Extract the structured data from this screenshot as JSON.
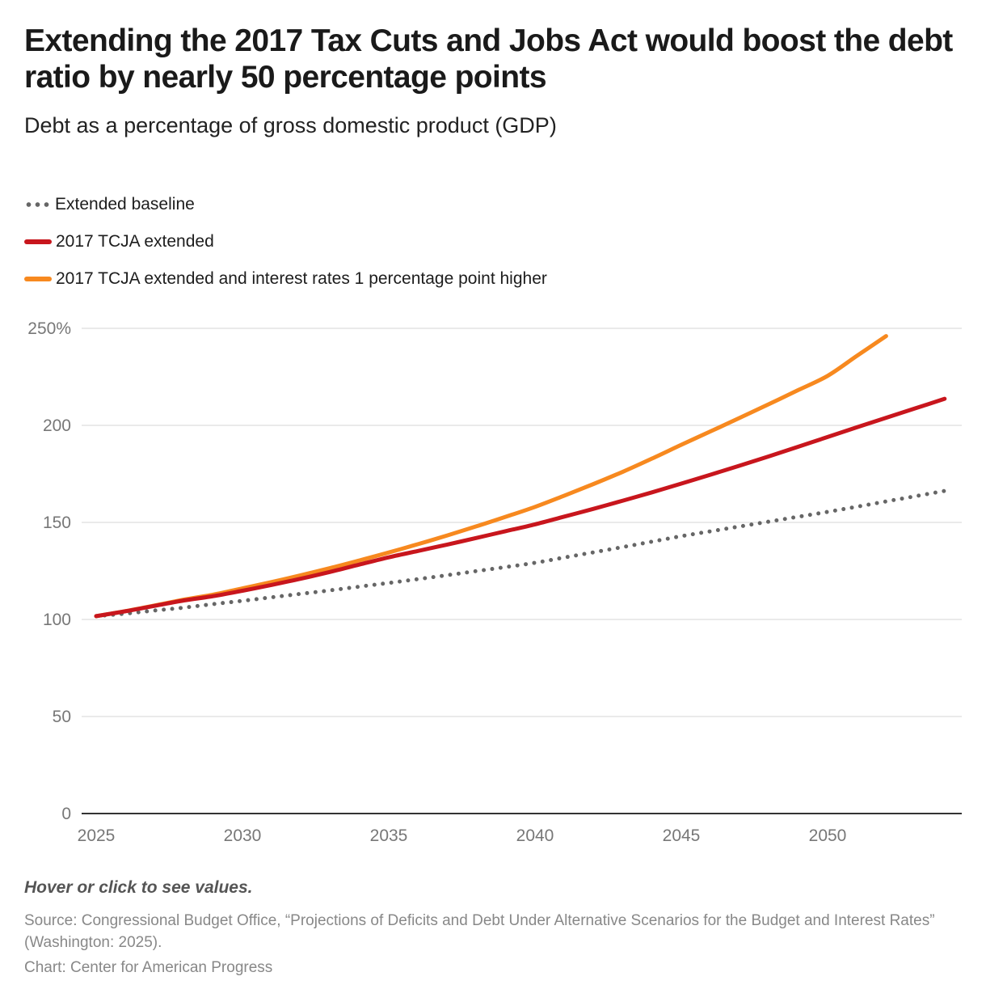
{
  "header": {
    "title": "Extending the 2017 Tax Cuts and Jobs Act would boost the debt ratio by nearly 50 percentage points",
    "subtitle": "Debt as a percentage of gross domestic product (GDP)"
  },
  "legend": [
    {
      "label": "Extended baseline",
      "color": "#666666",
      "style": "dotted"
    },
    {
      "label": "2017 TCJA extended",
      "color": "#c8161d",
      "style": "solid"
    },
    {
      "label": "2017 TCJA extended and interest rates 1 percentage point higher",
      "color": "#f7891f",
      "style": "solid"
    }
  ],
  "footer": {
    "note": "Hover or click to see values.",
    "source": "Source: Congressional Budget Office, “Projections of Deficits and Debt Under Alternative Scenarios for the Budget and Interest Rates” (Washington: 2025).",
    "credit": "Chart: Center for American Progress"
  },
  "chart_data": {
    "type": "line",
    "title": "Extending the 2017 Tax Cuts and Jobs Act would boost the debt ratio by nearly 50 percentage points",
    "subtitle": "Debt as a percentage of gross domestic product (GDP)",
    "xlabel": "",
    "ylabel": "",
    "xlim": [
      2025,
      2054
    ],
    "ylim": [
      0,
      250
    ],
    "x_ticks": [
      "2025",
      "2030",
      "2035",
      "2040",
      "2045",
      "2050"
    ],
    "y_ticks": [
      "0",
      "50",
      "100",
      "150",
      "200",
      "250%"
    ],
    "y_tick_values": [
      0,
      50,
      100,
      150,
      200,
      250
    ],
    "x_tick_values": [
      2025,
      2030,
      2035,
      2040,
      2045,
      2050
    ],
    "grid": true,
    "legend_position": "top-left",
    "series": [
      {
        "name": "Extended baseline",
        "color": "#666666",
        "style": "dotted",
        "x": [
          2025,
          2026,
          2027,
          2028,
          2029,
          2030,
          2031,
          2032,
          2033,
          2034,
          2035,
          2036,
          2037,
          2038,
          2039,
          2040,
          2041,
          2042,
          2043,
          2044,
          2045,
          2046,
          2047,
          2048,
          2049,
          2050,
          2051,
          2052,
          2053,
          2054
        ],
        "values": [
          101.7,
          103.0,
          104.6,
          106.1,
          107.9,
          109.6,
          111.4,
          113.2,
          115.0,
          116.9,
          118.8,
          120.8,
          122.8,
          124.9,
          127.0,
          129.2,
          131.9,
          134.6,
          137.3,
          140.1,
          142.9,
          145.4,
          147.9,
          150.4,
          152.9,
          155.4,
          158.1,
          160.8,
          163.5,
          166.2
        ]
      },
      {
        "name": "2017 TCJA extended",
        "color": "#c8161d",
        "style": "solid",
        "x": [
          2025,
          2026,
          2027,
          2028,
          2029,
          2030,
          2031,
          2032,
          2033,
          2034,
          2035,
          2036,
          2037,
          2038,
          2039,
          2040,
          2041,
          2042,
          2043,
          2044,
          2045,
          2046,
          2047,
          2048,
          2049,
          2050,
          2051,
          2052,
          2053,
          2054
        ],
        "values": [
          101.7,
          104.2,
          107.0,
          109.8,
          112.0,
          114.8,
          117.8,
          121.0,
          124.5,
          128.3,
          132.0,
          135.3,
          138.6,
          142.0,
          145.5,
          149.0,
          153.0,
          157.0,
          161.2,
          165.5,
          170.0,
          174.6,
          179.3,
          184.1,
          189.0,
          194.0,
          199.0,
          203.9,
          208.8,
          213.7
        ]
      },
      {
        "name": "2017 TCJA extended and interest rates 1 percentage point higher",
        "color": "#f7891f",
        "style": "solid",
        "x": [
          2025,
          2026,
          2027,
          2028,
          2029,
          2030,
          2031,
          2032,
          2033,
          2034,
          2035,
          2036,
          2037,
          2038,
          2039,
          2040,
          2041,
          2042,
          2043,
          2044,
          2045,
          2046,
          2047,
          2048,
          2049,
          2050,
          2051,
          2052
        ],
        "values": [
          101.7,
          104.3,
          107.2,
          110.2,
          112.8,
          116.0,
          119.3,
          122.8,
          126.5,
          130.4,
          134.5,
          138.8,
          143.3,
          148.0,
          152.9,
          158.0,
          163.8,
          169.8,
          176.1,
          182.9,
          190.0,
          196.9,
          203.9,
          211.0,
          218.2,
          225.5,
          235.8,
          246.0
        ]
      }
    ]
  }
}
